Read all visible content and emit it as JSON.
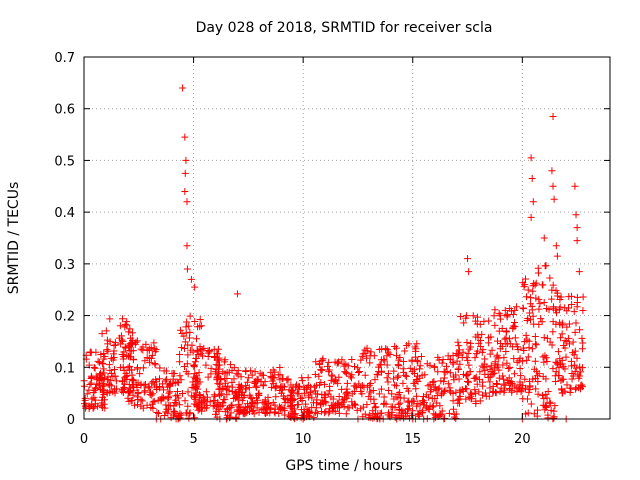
{
  "chart_data": {
    "type": "scatter",
    "title": "Day 028 of 2018, SRMTID for receiver scla",
    "xlabel": "GPS time / hours",
    "ylabel": "SRMTID / TECUs",
    "xlim": [
      0,
      24
    ],
    "ylim": [
      0,
      0.7
    ],
    "grid": true,
    "marker": "plus",
    "color": "#ff0000",
    "xticks": [
      0,
      5,
      10,
      15,
      20
    ],
    "yticks": [
      0,
      0.1,
      0.2,
      0.3,
      0.4,
      0.5,
      0.6,
      0.7
    ],
    "xtick_labels": [
      "0",
      "5",
      "10",
      "15",
      "20"
    ],
    "ytick_labels": [
      "0",
      "0.1",
      "0.2",
      "0.3",
      "0.4",
      "0.5",
      "0.6",
      "0.7"
    ],
    "series": [
      {
        "name": "SRMTID",
        "segments": [
          {
            "x_start": 0.0,
            "x_end": 1.0,
            "lo": 0.02,
            "hi": 0.13,
            "n": 70
          },
          {
            "x_start": 0.8,
            "x_end": 2.3,
            "lo": 0.05,
            "hi": 0.2,
            "n": 110
          },
          {
            "x_start": 2.0,
            "x_end": 3.3,
            "lo": 0.02,
            "hi": 0.16,
            "n": 80
          },
          {
            "x_start": 3.3,
            "x_end": 4.3,
            "lo": 0.0,
            "hi": 0.1,
            "n": 60
          },
          {
            "x_start": 4.3,
            "x_end": 5.4,
            "lo": 0.0,
            "hi": 0.2,
            "n": 70
          },
          {
            "x_start": 5.0,
            "x_end": 6.2,
            "lo": 0.02,
            "hi": 0.14,
            "n": 80
          },
          {
            "x_start": 6.0,
            "x_end": 7.2,
            "lo": 0.0,
            "hi": 0.12,
            "n": 90
          },
          {
            "x_start": 7.0,
            "x_end": 9.0,
            "lo": 0.01,
            "hi": 0.1,
            "n": 130
          },
          {
            "x_start": 9.0,
            "x_end": 10.5,
            "lo": 0.0,
            "hi": 0.08,
            "n": 100
          },
          {
            "x_start": 10.5,
            "x_end": 12.5,
            "lo": 0.01,
            "hi": 0.12,
            "n": 120
          },
          {
            "x_start": 12.5,
            "x_end": 14.0,
            "lo": 0.0,
            "hi": 0.14,
            "n": 90
          },
          {
            "x_start": 14.0,
            "x_end": 15.3,
            "lo": 0.0,
            "hi": 0.15,
            "n": 90
          },
          {
            "x_start": 15.3,
            "x_end": 17.0,
            "lo": 0.0,
            "hi": 0.13,
            "n": 100
          },
          {
            "x_start": 17.0,
            "x_end": 18.5,
            "lo": 0.03,
            "hi": 0.2,
            "n": 100
          },
          {
            "x_start": 18.5,
            "x_end": 20.0,
            "lo": 0.05,
            "hi": 0.22,
            "n": 110
          },
          {
            "x_start": 20.0,
            "x_end": 21.5,
            "lo": 0.0,
            "hi": 0.3,
            "n": 120
          },
          {
            "x_start": 21.5,
            "x_end": 22.8,
            "lo": 0.05,
            "hi": 0.25,
            "n": 100
          }
        ],
        "highlights": [
          {
            "x": 4.5,
            "y": 0.64
          },
          {
            "x": 4.6,
            "y": 0.545
          },
          {
            "x": 4.65,
            "y": 0.5
          },
          {
            "x": 4.62,
            "y": 0.475
          },
          {
            "x": 4.6,
            "y": 0.44
          },
          {
            "x": 4.7,
            "y": 0.42
          },
          {
            "x": 4.7,
            "y": 0.335
          },
          {
            "x": 4.72,
            "y": 0.29
          },
          {
            "x": 4.9,
            "y": 0.27
          },
          {
            "x": 5.05,
            "y": 0.255
          },
          {
            "x": 7.0,
            "y": 0.242
          },
          {
            "x": 17.5,
            "y": 0.31
          },
          {
            "x": 17.55,
            "y": 0.285
          },
          {
            "x": 20.4,
            "y": 0.505
          },
          {
            "x": 20.45,
            "y": 0.465
          },
          {
            "x": 20.5,
            "y": 0.42
          },
          {
            "x": 20.4,
            "y": 0.39
          },
          {
            "x": 21.0,
            "y": 0.35
          },
          {
            "x": 21.4,
            "y": 0.585
          },
          {
            "x": 21.35,
            "y": 0.48
          },
          {
            "x": 21.4,
            "y": 0.45
          },
          {
            "x": 21.45,
            "y": 0.425
          },
          {
            "x": 21.55,
            "y": 0.335
          },
          {
            "x": 21.6,
            "y": 0.315
          },
          {
            "x": 22.4,
            "y": 0.45
          },
          {
            "x": 22.45,
            "y": 0.395
          },
          {
            "x": 22.5,
            "y": 0.37
          },
          {
            "x": 22.5,
            "y": 0.345
          },
          {
            "x": 22.6,
            "y": 0.285
          }
        ],
        "zeros": [
          3.3,
          3.5,
          4.3,
          6.2,
          6.5,
          10.0,
          12.5,
          13.5,
          15.0,
          15.5,
          18.5,
          20.0,
          22.0
        ]
      }
    ]
  }
}
